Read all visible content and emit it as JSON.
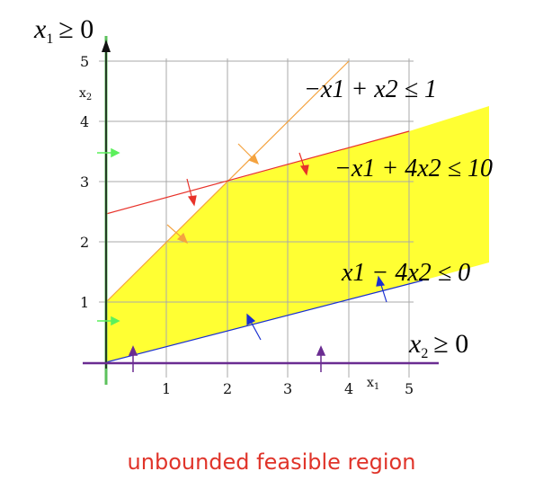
{
  "caption": "unbounded feasible region",
  "axes": {
    "x_label": "x",
    "x_label_sub": "1",
    "y_label": "x",
    "y_label_sub": "2",
    "x_ticks": [
      "1",
      "2",
      "3",
      "4",
      "5"
    ],
    "y_ticks": [
      "1",
      "2",
      "3",
      "4",
      "5"
    ]
  },
  "constraints": [
    {
      "id": "x1-nonneg",
      "lhs": "x",
      "sub": "1",
      "rhs": "≥ 0",
      "color": "#4caf50"
    },
    {
      "id": "x2-nonneg",
      "lhs": "x",
      "sub": "2",
      "rhs": "≥ 0",
      "color": "#6a2c91"
    },
    {
      "id": "c1",
      "text": "−x1 + x2 ≤ 1",
      "color": "#f4a340"
    },
    {
      "id": "c2",
      "text": "−x1 + 4x2 ≤ 10",
      "color": "#e8322a"
    },
    {
      "id": "c3",
      "text": "x1 − 4x2 ≤ 0",
      "color": "#1a2fd1"
    }
  ],
  "region_color": "#ffff33"
}
